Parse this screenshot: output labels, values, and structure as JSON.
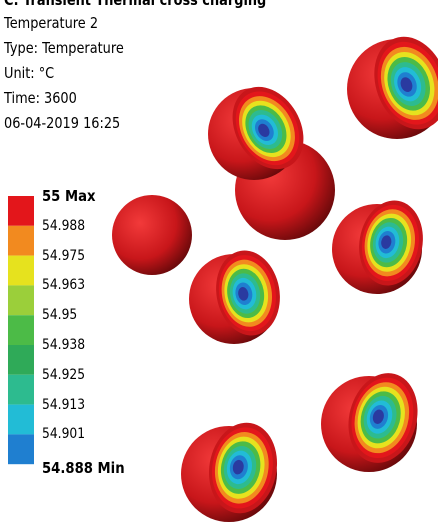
{
  "header": {
    "title": "C: Transient Thermal cross charging",
    "lines": [
      "Temperature 2",
      "Type: Temperature",
      "Unit: °C",
      "Time: 3600",
      "06-04-2019 16:25"
    ]
  },
  "legend": {
    "labels": [
      "55 Max",
      "54.988",
      "54.975",
      "54.963",
      "54.95",
      "54.938",
      "54.925",
      "54.913",
      "54.901",
      "54.888 Min"
    ],
    "colors": [
      "#e3161b",
      "#f28a1f",
      "#e6e21e",
      "#9bcf3a",
      "#4cbb47",
      "#2faa58",
      "#2dbb8f",
      "#22bcd6",
      "#1f7fd0",
      "#2a3aa0"
    ]
  }
}
